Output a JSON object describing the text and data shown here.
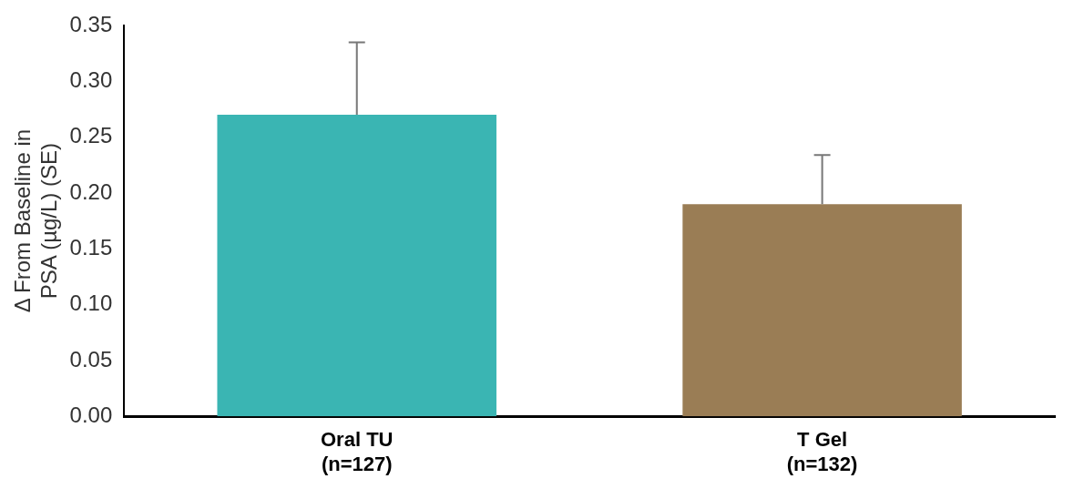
{
  "chart_data": {
    "type": "bar",
    "ylabel": "Δ From Baseline in\nPSA (µg/L) (SE)",
    "categories": [
      "Oral TU\n(n=127)",
      "T Gel\n(n=132)"
    ],
    "values": [
      0.27,
      0.19
    ],
    "colors": [
      "#3ab5b3",
      "#9a7d55"
    ],
    "errors": [
      [
        0.27,
        0.335
      ],
      [
        0.19,
        0.234
      ]
    ],
    "ylim": [
      0,
      0.35
    ],
    "yticks": [
      {
        "value": 0,
        "label": "0.00"
      },
      0.05,
      {
        "value": 0.1,
        "label": "0.10"
      },
      0.15,
      {
        "value": 0.2,
        "label": "0.20"
      },
      0.25,
      {
        "value": 0.3,
        "label": "0.30"
      },
      0.35
    ],
    "grid": false,
    "legend": false
  }
}
